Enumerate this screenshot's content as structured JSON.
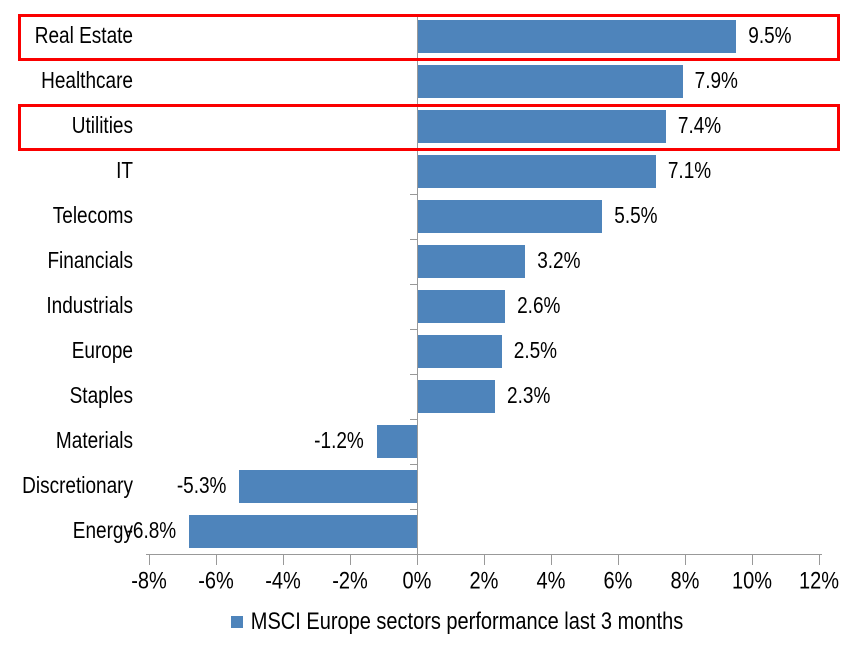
{
  "chart_data": {
    "type": "bar",
    "orientation": "horizontal",
    "legend": "MSCI Europe sectors performance last 3 months",
    "legend_position": "bottom-center",
    "categories": [
      "Real Estate",
      "Healthcare",
      "Utilities",
      "IT",
      "Telecoms",
      "Financials",
      "Industrials",
      "Europe",
      "Staples",
      "Materials",
      "Discretionary",
      "Energy"
    ],
    "values": [
      9.5,
      7.9,
      7.4,
      7.1,
      5.5,
      3.2,
      2.6,
      2.5,
      2.3,
      -1.2,
      -5.3,
      -6.8
    ],
    "value_labels": [
      "9.5%",
      "7.9%",
      "7.4%",
      "7.1%",
      "5.5%",
      "3.2%",
      "2.6%",
      "2.5%",
      "2.3%",
      "-1.2%",
      "-5.3%",
      "-6.8%"
    ],
    "x_tick_labels": [
      "-8%",
      "-6%",
      "-4%",
      "-2%",
      "0%",
      "2%",
      "4%",
      "6%",
      "8%",
      "10%",
      "12%"
    ],
    "x_tick_values": [
      -8,
      -6,
      -4,
      -2,
      0,
      2,
      4,
      6,
      8,
      10,
      12
    ],
    "xlim": [
      -8,
      12
    ],
    "grid": false,
    "bar_color": "#4E84BB",
    "axis_color": "#999999",
    "text_color": "#000000",
    "highlight_box_color": "#FA0000",
    "highlighted_categories": [
      "Real Estate",
      "Utilities"
    ]
  }
}
